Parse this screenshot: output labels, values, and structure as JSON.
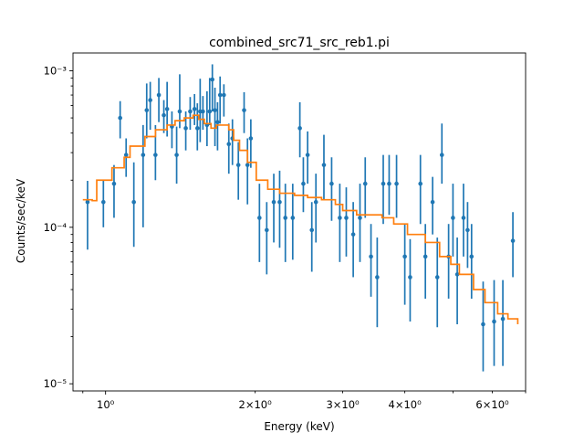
{
  "chart_data": {
    "type": "scatter",
    "title": "combined_src71_src_reb1.pi",
    "xlabel": "Energy (keV)",
    "ylabel": "Counts/sec/keV",
    "xscale": "log",
    "yscale": "log",
    "xlim": [
      0.86,
      7.0
    ],
    "ylim": [
      9e-06,
      0.0013
    ],
    "grid": false,
    "x_major_ticks": [
      {
        "value": 1,
        "label": "10⁰"
      }
    ],
    "x_minor_ticks": [
      {
        "value": 2,
        "label": "2×10⁰"
      },
      {
        "value": 3,
        "label": "3×10⁰"
      },
      {
        "value": 4,
        "label": "4×10⁰"
      },
      {
        "value": 6,
        "label": "6×10⁰"
      }
    ],
    "y_major_ticks": [
      {
        "value": 1e-05,
        "label": "10⁻⁵"
      },
      {
        "value": 0.0001,
        "label": "10⁻⁴"
      },
      {
        "value": 0.001,
        "label": "10⁻³"
      }
    ],
    "series": [
      {
        "kind": "data",
        "color": "#1f77b4",
        "points": [
          {
            "x": 0.92,
            "y": 0.000145,
            "ylo": 7.2e-05,
            "yhi": 0.000198
          },
          {
            "x": 0.99,
            "y": 0.000145,
            "ylo": 0.0001,
            "yhi": 0.0002
          },
          {
            "x": 1.04,
            "y": 0.00019,
            "ylo": 0.000115,
            "yhi": 0.00025
          },
          {
            "x": 1.07,
            "y": 0.0005,
            "ylo": 0.00037,
            "yhi": 0.00064
          },
          {
            "x": 1.1,
            "y": 0.00029,
            "ylo": 0.00021,
            "yhi": 0.00037
          },
          {
            "x": 1.14,
            "y": 0.000145,
            "ylo": 7.5e-05,
            "yhi": 0.00026
          },
          {
            "x": 1.19,
            "y": 0.00029,
            "ylo": 0.0001,
            "yhi": 0.00045
          },
          {
            "x": 1.21,
            "y": 0.00056,
            "ylo": 0.00037,
            "yhi": 0.00083
          },
          {
            "x": 1.23,
            "y": 0.00065,
            "ylo": 0.00042,
            "yhi": 0.00085
          },
          {
            "x": 1.26,
            "y": 0.00029,
            "ylo": 0.0002,
            "yhi": 0.00045
          },
          {
            "x": 1.28,
            "y": 0.0007,
            "ylo": 0.00047,
            "yhi": 0.0009
          },
          {
            "x": 1.31,
            "y": 0.00052,
            "ylo": 0.0004,
            "yhi": 0.00065
          },
          {
            "x": 1.33,
            "y": 0.00057,
            "ylo": 0.00038,
            "yhi": 0.00085
          },
          {
            "x": 1.36,
            "y": 0.00044,
            "ylo": 0.00032,
            "yhi": 0.00055
          },
          {
            "x": 1.39,
            "y": 0.00029,
            "ylo": 0.00019,
            "yhi": 0.00044
          },
          {
            "x": 1.41,
            "y": 0.00055,
            "ylo": 0.00043,
            "yhi": 0.00095
          },
          {
            "x": 1.45,
            "y": 0.00043,
            "ylo": 0.00031,
            "yhi": 0.00055
          },
          {
            "x": 1.48,
            "y": 0.00055,
            "ylo": 0.00042,
            "yhi": 0.00068
          },
          {
            "x": 1.51,
            "y": 0.00057,
            "ylo": 0.00045,
            "yhi": 0.00071
          },
          {
            "x": 1.53,
            "y": 0.00043,
            "ylo": 0.00031,
            "yhi": 0.00062
          },
          {
            "x": 1.55,
            "y": 0.00055,
            "ylo": 0.00035,
            "yhi": 0.00089
          },
          {
            "x": 1.57,
            "y": 0.00055,
            "ylo": 0.00042,
            "yhi": 0.00069
          },
          {
            "x": 1.6,
            "y": 0.00045,
            "ylo": 0.00033,
            "yhi": 0.00074
          },
          {
            "x": 1.62,
            "y": 0.00055,
            "ylo": 0.00045,
            "yhi": 0.0009
          },
          {
            "x": 1.64,
            "y": 0.00088,
            "ylo": 0.00055,
            "yhi": 0.0011
          },
          {
            "x": 1.66,
            "y": 0.00056,
            "ylo": 0.00033,
            "yhi": 0.00078
          },
          {
            "x": 1.68,
            "y": 0.00047,
            "ylo": 0.00031,
            "yhi": 0.00063
          },
          {
            "x": 1.7,
            "y": 0.0007,
            "ylo": 0.00046,
            "yhi": 0.00092
          },
          {
            "x": 1.73,
            "y": 0.0007,
            "ylo": 0.00051,
            "yhi": 0.00082
          },
          {
            "x": 1.77,
            "y": 0.00034,
            "ylo": 0.00022,
            "yhi": 0.00046
          },
          {
            "x": 1.8,
            "y": 0.00037,
            "ylo": 0.00025,
            "yhi": 0.00049
          },
          {
            "x": 1.85,
            "y": 0.00025,
            "ylo": 0.00015,
            "yhi": 0.00035
          },
          {
            "x": 1.9,
            "y": 0.00056,
            "ylo": 0.0004,
            "yhi": 0.00073
          },
          {
            "x": 1.93,
            "y": 0.00025,
            "ylo": 0.00014,
            "yhi": 0.00037
          },
          {
            "x": 1.96,
            "y": 0.00037,
            "ylo": 0.00024,
            "yhi": 0.00049
          },
          {
            "x": 2.04,
            "y": 0.000115,
            "ylo": 6e-05,
            "yhi": 0.00019
          },
          {
            "x": 2.11,
            "y": 9.6e-05,
            "ylo": 5e-05,
            "yhi": 0.000145
          },
          {
            "x": 2.18,
            "y": 0.000145,
            "ylo": 8e-05,
            "yhi": 0.00022
          },
          {
            "x": 2.24,
            "y": 0.000145,
            "ylo": 7.4e-05,
            "yhi": 0.00023
          },
          {
            "x": 2.3,
            "y": 0.000115,
            "ylo": 6e-05,
            "yhi": 0.00019
          },
          {
            "x": 2.38,
            "y": 0.000115,
            "ylo": 6.2e-05,
            "yhi": 0.00019
          },
          {
            "x": 2.46,
            "y": 0.00043,
            "ylo": 0.00028,
            "yhi": 0.00063
          },
          {
            "x": 2.5,
            "y": 0.00019,
            "ylo": 0.000125,
            "yhi": 0.00028
          },
          {
            "x": 2.55,
            "y": 0.00029,
            "ylo": 0.00019,
            "yhi": 0.00041
          },
          {
            "x": 2.6,
            "y": 9.6e-05,
            "ylo": 5.2e-05,
            "yhi": 0.000145
          },
          {
            "x": 2.65,
            "y": 0.000145,
            "ylo": 8e-05,
            "yhi": 0.00022
          },
          {
            "x": 2.75,
            "y": 0.00025,
            "ylo": 0.00015,
            "yhi": 0.00039
          },
          {
            "x": 2.85,
            "y": 0.00019,
            "ylo": 0.00011,
            "yhi": 0.00028
          },
          {
            "x": 2.96,
            "y": 0.000115,
            "ylo": 6e-05,
            "yhi": 0.00019
          },
          {
            "x": 3.05,
            "y": 0.000115,
            "ylo": 6.5e-05,
            "yhi": 0.00018
          },
          {
            "x": 3.15,
            "y": 9e-05,
            "ylo": 4.8e-05,
            "yhi": 0.000145
          },
          {
            "x": 3.25,
            "y": 0.000115,
            "ylo": 6e-05,
            "yhi": 0.00019
          },
          {
            "x": 3.33,
            "y": 0.00019,
            "ylo": 0.000115,
            "yhi": 0.00028
          },
          {
            "x": 3.42,
            "y": 6.5e-05,
            "ylo": 3.6e-05,
            "yhi": 0.000105
          },
          {
            "x": 3.52,
            "y": 4.8e-05,
            "ylo": 2.3e-05,
            "yhi": 8.6e-05
          },
          {
            "x": 3.62,
            "y": 0.00019,
            "ylo": 0.000105,
            "yhi": 0.00029
          },
          {
            "x": 3.72,
            "y": 0.00019,
            "ylo": 0.00012,
            "yhi": 0.00029
          },
          {
            "x": 3.85,
            "y": 0.00019,
            "ylo": 0.000115,
            "yhi": 0.00029
          },
          {
            "x": 4.0,
            "y": 6.5e-05,
            "ylo": 3.2e-05,
            "yhi": 0.000105
          },
          {
            "x": 4.1,
            "y": 4.8e-05,
            "ylo": 2.5e-05,
            "yhi": 8.4e-05
          },
          {
            "x": 4.3,
            "y": 0.00019,
            "ylo": 0.000105,
            "yhi": 0.00029
          },
          {
            "x": 4.4,
            "y": 6.5e-05,
            "ylo": 3.5e-05,
            "yhi": 0.000105
          },
          {
            "x": 4.55,
            "y": 0.000145,
            "ylo": 9e-05,
            "yhi": 0.00021
          },
          {
            "x": 4.65,
            "y": 4.8e-05,
            "ylo": 2.3e-05,
            "yhi": 8.6e-05
          },
          {
            "x": 4.75,
            "y": 0.00029,
            "ylo": 0.00019,
            "yhi": 0.00046
          },
          {
            "x": 4.9,
            "y": 6.5e-05,
            "ylo": 3.5e-05,
            "yhi": 0.000105
          },
          {
            "x": 5.0,
            "y": 0.000115,
            "ylo": 6.5e-05,
            "yhi": 0.00019
          },
          {
            "x": 5.1,
            "y": 5e-05,
            "ylo": 2.4e-05,
            "yhi": 8.6e-05
          },
          {
            "x": 5.25,
            "y": 0.000115,
            "ylo": 6.5e-05,
            "yhi": 0.00019
          },
          {
            "x": 5.35,
            "y": 9.6e-05,
            "ylo": 5.5e-05,
            "yhi": 0.000145
          },
          {
            "x": 5.45,
            "y": 6.5e-05,
            "ylo": 3.5e-05,
            "yhi": 0.000105
          },
          {
            "x": 5.75,
            "y": 2.4e-05,
            "ylo": 1.2e-05,
            "yhi": 4.5e-05
          },
          {
            "x": 6.05,
            "y": 2.5e-05,
            "ylo": 1.3e-05,
            "yhi": 4.6e-05
          },
          {
            "x": 6.3,
            "y": 2.6e-05,
            "ylo": 1.3e-05,
            "yhi": 4.6e-05
          },
          {
            "x": 6.6,
            "y": 8.2e-05,
            "ylo": 4.8e-05,
            "yhi": 0.000125
          }
        ]
      },
      {
        "kind": "model",
        "color": "#ff7f0e",
        "step": [
          {
            "x": 0.9,
            "y": 0.00015
          },
          {
            "x": 0.94,
            "y": 0.000148
          },
          {
            "x": 0.96,
            "y": 0.0002
          },
          {
            "x": 1.03,
            "y": 0.00024
          },
          {
            "x": 1.09,
            "y": 0.00028
          },
          {
            "x": 1.12,
            "y": 0.00033
          },
          {
            "x": 1.2,
            "y": 0.00038
          },
          {
            "x": 1.26,
            "y": 0.00042
          },
          {
            "x": 1.33,
            "y": 0.00045
          },
          {
            "x": 1.38,
            "y": 0.00048
          },
          {
            "x": 1.44,
            "y": 0.0005
          },
          {
            "x": 1.5,
            "y": 0.00052
          },
          {
            "x": 1.54,
            "y": 0.00049
          },
          {
            "x": 1.58,
            "y": 0.00046
          },
          {
            "x": 1.63,
            "y": 0.00043
          },
          {
            "x": 1.67,
            "y": 0.00045
          },
          {
            "x": 1.77,
            "y": 0.00042
          },
          {
            "x": 1.81,
            "y": 0.00036
          },
          {
            "x": 1.86,
            "y": 0.00031
          },
          {
            "x": 1.93,
            "y": 0.00026
          },
          {
            "x": 2.01,
            "y": 0.0002
          },
          {
            "x": 2.12,
            "y": 0.000175
          },
          {
            "x": 2.24,
            "y": 0.000165
          },
          {
            "x": 2.4,
            "y": 0.00016
          },
          {
            "x": 2.55,
            "y": 0.000155
          },
          {
            "x": 2.72,
            "y": 0.00015
          },
          {
            "x": 2.9,
            "y": 0.00014
          },
          {
            "x": 3.0,
            "y": 0.000128
          },
          {
            "x": 3.2,
            "y": 0.00012
          },
          {
            "x": 3.6,
            "y": 0.000115
          },
          {
            "x": 3.8,
            "y": 0.000105
          },
          {
            "x": 4.05,
            "y": 9e-05
          },
          {
            "x": 4.4,
            "y": 8e-05
          },
          {
            "x": 4.7,
            "y": 6.5e-05
          },
          {
            "x": 4.95,
            "y": 5.8e-05
          },
          {
            "x": 5.15,
            "y": 5e-05
          },
          {
            "x": 5.5,
            "y": 4e-05
          },
          {
            "x": 5.8,
            "y": 3.3e-05
          },
          {
            "x": 6.15,
            "y": 2.8e-05
          },
          {
            "x": 6.45,
            "y": 2.6e-05
          },
          {
            "x": 6.75,
            "y": 2.4e-05
          }
        ]
      }
    ]
  }
}
